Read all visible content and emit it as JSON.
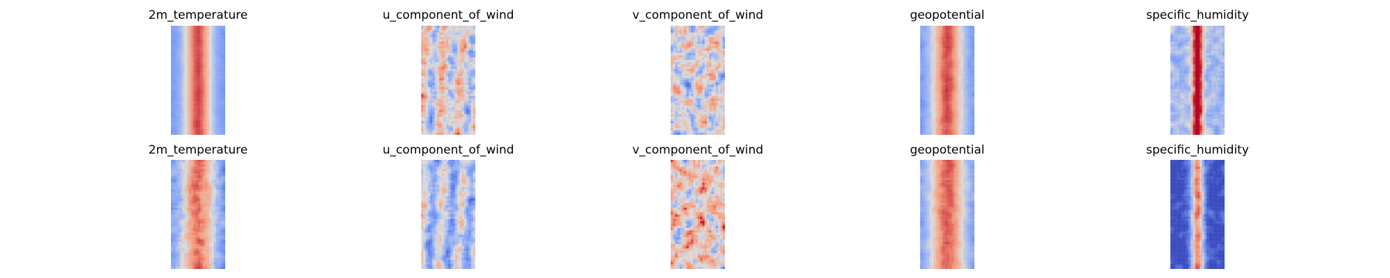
{
  "chart_data": {
    "type": "heatmap",
    "colormap": "coolwarm",
    "axes_visible": false,
    "grid": false,
    "legend": "none",
    "colorbar": false,
    "rows": [
      {
        "panels": [
          {
            "title": "2m_temperature",
            "pattern": "warm-band",
            "center": 0.58,
            "width": 0.62,
            "noise": 0.12
          },
          {
            "title": "u_component_of_wind",
            "pattern": "streaks",
            "center": 0.0,
            "width": 0.5,
            "noise": 0.55
          },
          {
            "title": "v_component_of_wind",
            "pattern": "eddies",
            "center": 0.0,
            "width": 0.5,
            "noise": 0.6
          },
          {
            "title": "geopotential",
            "pattern": "warm-band",
            "center": 0.55,
            "width": 0.7,
            "noise": 0.2
          },
          {
            "title": "specific_humidity",
            "pattern": "humid-core",
            "center": 0.4,
            "width": 0.25,
            "noise": 0.5
          }
        ]
      },
      {
        "panels": [
          {
            "title": "2m_temperature",
            "pattern": "warm-band",
            "center": 0.45,
            "width": 0.75,
            "noise": 0.4
          },
          {
            "title": "u_component_of_wind",
            "pattern": "streaks",
            "center": -0.2,
            "width": 0.5,
            "noise": 0.45
          },
          {
            "title": "v_component_of_wind",
            "pattern": "eddies",
            "center": 0.15,
            "width": 0.5,
            "noise": 0.7
          },
          {
            "title": "geopotential",
            "pattern": "warm-band",
            "center": 0.5,
            "width": 0.8,
            "noise": 0.25
          },
          {
            "title": "specific_humidity",
            "pattern": "humid-core",
            "center": -0.3,
            "width": 0.3,
            "noise": 0.5
          }
        ]
      }
    ]
  }
}
